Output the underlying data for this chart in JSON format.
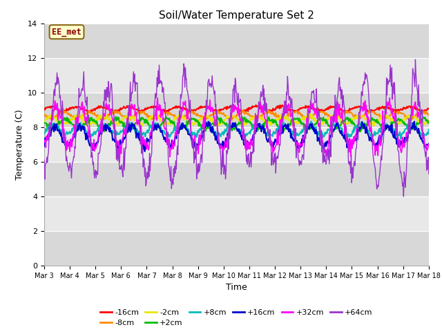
{
  "title": "Soil/Water Temperature Set 2",
  "xlabel": "Time",
  "ylabel": "Temperature (C)",
  "ylim": [
    0,
    14
  ],
  "yticks": [
    0,
    2,
    4,
    6,
    8,
    10,
    12,
    14
  ],
  "xlim": [
    0,
    15
  ],
  "xtick_labels": [
    "Mar 3",
    "Mar 4",
    "Mar 5",
    "Mar 6",
    "Mar 7",
    "Mar 8",
    "Mar 9",
    "Mar 10",
    "Mar 11",
    "Mar 12",
    "Mar 13",
    "Mar 14",
    "Mar 15",
    "Mar 16",
    "Mar 17",
    "Mar 18"
  ],
  "annotation_text": "EE_met",
  "annotation_bg": "#ffffcc",
  "annotation_border": "#8b6914",
  "plot_bg": "#e8e8e8",
  "series": [
    {
      "label": "-16cm",
      "color": "#ff0000",
      "base": 9.05,
      "amplitude": 0.12,
      "noise": 0.04
    },
    {
      "label": "-8cm",
      "color": "#ff8c00",
      "base": 8.7,
      "amplitude": 0.18,
      "noise": 0.05
    },
    {
      "label": "-2cm",
      "color": "#e8e800",
      "base": 8.42,
      "amplitude": 0.22,
      "noise": 0.06
    },
    {
      "label": "+2cm",
      "color": "#00bb00",
      "base": 8.18,
      "amplitude": 0.28,
      "noise": 0.07
    },
    {
      "label": "+8cm",
      "color": "#00bbbb",
      "base": 7.85,
      "amplitude": 0.3,
      "noise": 0.08
    },
    {
      "label": "+16cm",
      "color": "#0000cc",
      "base": 7.5,
      "amplitude": 0.55,
      "noise": 0.13
    },
    {
      "label": "+32cm",
      "color": "#ff00ff",
      "base": 8.0,
      "amplitude": 1.2,
      "noise": 0.25
    },
    {
      "label": "+64cm",
      "color": "#9933cc",
      "base": 8.0,
      "amplitude": 0.0,
      "noise": 0.0
    }
  ],
  "grid_color": "#ffffff",
  "band_colors": [
    "#dcdcdc",
    "#e8e8e8"
  ],
  "n_points": 720,
  "seed": 42
}
